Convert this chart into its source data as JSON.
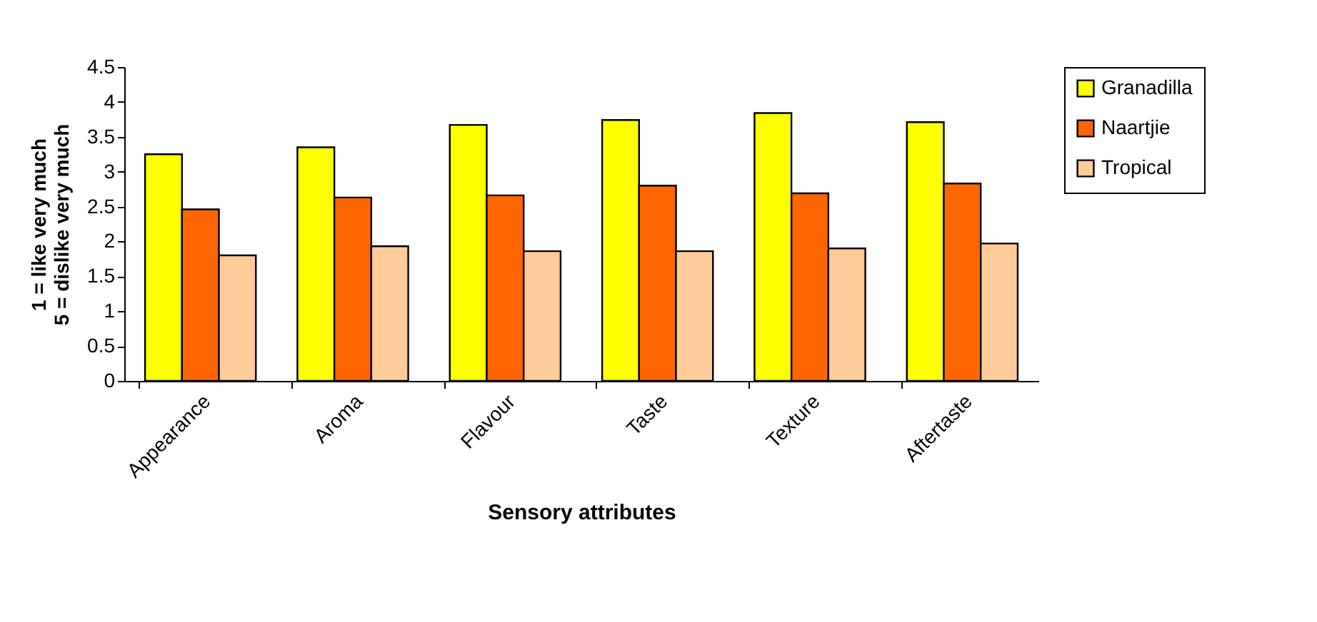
{
  "chart_data": {
    "type": "bar",
    "xlabel": "Sensory attributes",
    "ylabel": "1 = like very much\n5 = dislike very much",
    "categories": [
      "Appearance",
      "Aroma",
      "Flavour",
      "Taste",
      "Texture",
      "Aftertaste"
    ],
    "series": [
      {
        "name": "Granadilla",
        "color": "#ffff00",
        "values": [
          3.25,
          3.35,
          3.67,
          3.74,
          3.84,
          3.71
        ]
      },
      {
        "name": "Naartjie",
        "color": "#ff6600",
        "values": [
          2.46,
          2.63,
          2.66,
          2.8,
          2.69,
          2.83
        ]
      },
      {
        "name": "Tropical",
        "color": "#ffcc99",
        "values": [
          1.8,
          1.93,
          1.86,
          1.86,
          1.9,
          1.97
        ]
      }
    ],
    "ylim": [
      0,
      4.5
    ],
    "yticks": [
      0,
      0.5,
      1,
      1.5,
      2,
      2.5,
      3,
      3.5,
      4,
      4.5
    ],
    "grid": false,
    "legend": "right"
  }
}
